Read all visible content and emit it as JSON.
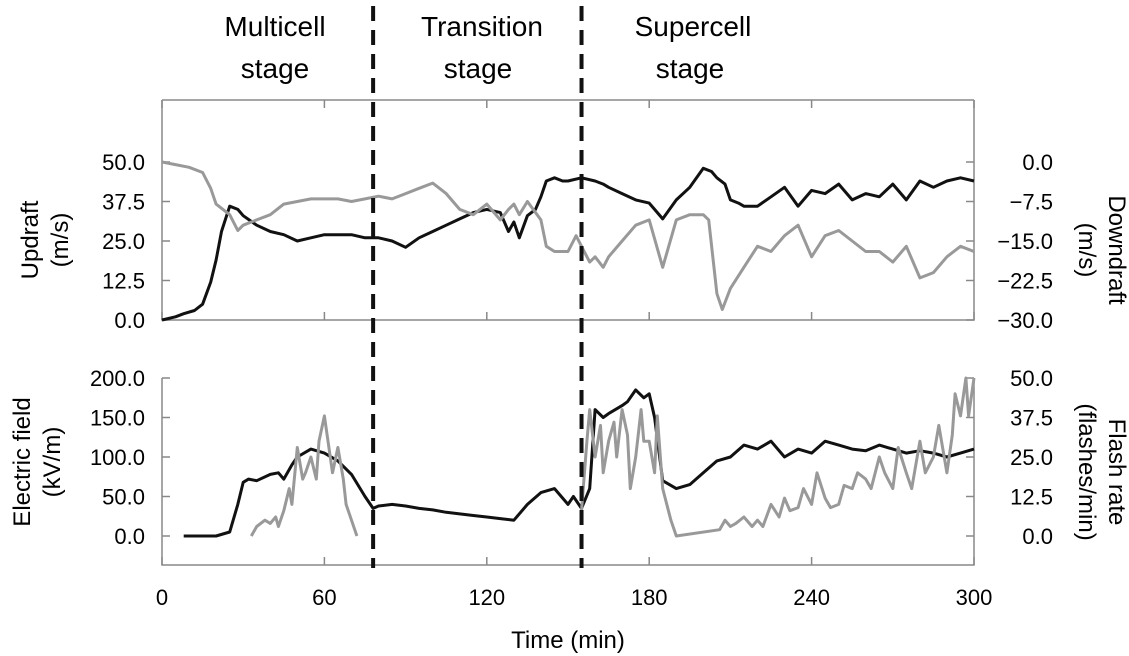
{
  "stages": [
    {
      "line1": "Multicell",
      "line2": "stage"
    },
    {
      "line1": "Transition",
      "line2": "stage"
    },
    {
      "line1": "Supercell",
      "line2": "stage"
    }
  ],
  "stage_boundaries": [
    78,
    155
  ],
  "colors": {
    "black_series": "#111111",
    "gray_series": "#999999",
    "divider": "#111111",
    "axis": "#888888"
  },
  "chart_data": [
    {
      "type": "line",
      "xlabel": "Time (min)",
      "xlim": [
        0,
        300
      ],
      "xticks": [
        "0",
        "60",
        "120",
        "180",
        "240",
        "300"
      ],
      "ylabel_left": [
        "Updraft",
        "(m/s)"
      ],
      "ylim_left": [
        0,
        50
      ],
      "yticks_left": [
        "50.0",
        "37.5",
        "25.0",
        "12.5",
        "0.0"
      ],
      "ylabel_right": [
        "Downdraft",
        "(m/s)"
      ],
      "ylim_right": [
        -30,
        0
      ],
      "yticks_right": [
        "0.0",
        "−7.5",
        "−15.0",
        "−22.5",
        "−30.0"
      ],
      "series": [
        {
          "axis": "left",
          "color": "black",
          "x": [
            0,
            5,
            8,
            12,
            15,
            18,
            20,
            22,
            25,
            28,
            30,
            35,
            40,
            45,
            50,
            55,
            60,
            65,
            70,
            75,
            80,
            85,
            90,
            95,
            100,
            105,
            110,
            115,
            120,
            125,
            128,
            130,
            132,
            135,
            138,
            140,
            142,
            145,
            148,
            150,
            155,
            160,
            163,
            165,
            170,
            175,
            180,
            182,
            185,
            190,
            195,
            200,
            203,
            205,
            208,
            210,
            213,
            215,
            220,
            225,
            230,
            235,
            240,
            245,
            250,
            255,
            260,
            265,
            270,
            275,
            280,
            285,
            290,
            295,
            300
          ],
          "y": [
            0,
            1,
            2,
            3,
            5,
            12,
            19,
            28,
            36,
            35,
            33,
            30,
            28,
            27,
            25,
            26,
            27,
            27,
            27,
            26,
            26,
            25,
            23,
            26,
            28,
            30,
            32,
            34,
            35,
            34,
            28,
            31,
            26,
            33,
            35,
            39,
            44,
            45,
            44,
            44,
            45,
            44,
            43,
            42,
            40,
            38,
            37,
            35,
            32,
            38,
            42,
            48,
            47,
            45,
            43,
            38,
            37,
            36,
            36,
            39,
            42,
            36,
            41,
            40,
            43,
            38,
            40,
            39,
            43,
            38,
            44,
            42,
            44,
            45,
            44
          ]
        },
        {
          "axis": "right",
          "color": "gray",
          "x": [
            0,
            5,
            10,
            15,
            18,
            20,
            25,
            28,
            30,
            35,
            40,
            45,
            50,
            55,
            60,
            65,
            70,
            75,
            80,
            85,
            90,
            95,
            100,
            105,
            110,
            115,
            120,
            125,
            128,
            130,
            132,
            135,
            140,
            142,
            145,
            150,
            153,
            155,
            158,
            160,
            163,
            165,
            170,
            175,
            180,
            185,
            190,
            195,
            200,
            202,
            205,
            207,
            210,
            215,
            220,
            225,
            230,
            235,
            240,
            245,
            250,
            255,
            260,
            265,
            270,
            275,
            280,
            285,
            290,
            295,
            300
          ],
          "y": [
            0,
            -0.5,
            -1,
            -2,
            -5,
            -8,
            -10,
            -13,
            -12,
            -11,
            -10,
            -8,
            -7.5,
            -7,
            -7,
            -7,
            -7.5,
            -7,
            -6.5,
            -7,
            -6,
            -5,
            -4,
            -6,
            -9,
            -10,
            -8,
            -11,
            -9,
            -8,
            -10,
            -7.5,
            -11,
            -16,
            -17,
            -17,
            -14,
            -16,
            -19,
            -18,
            -20,
            -18,
            -15,
            -12,
            -11,
            -20,
            -11,
            -10,
            -10,
            -11,
            -25,
            -28,
            -24,
            -20,
            -16,
            -17,
            -14,
            -12,
            -18,
            -14,
            -13,
            -15,
            -17,
            -17,
            -19,
            -16,
            -22,
            -21,
            -18,
            -16,
            -17
          ]
        }
      ]
    },
    {
      "type": "line",
      "xlabel": "Time (min)",
      "xlim": [
        0,
        300
      ],
      "xticks": [
        "0",
        "60",
        "120",
        "180",
        "240",
        "300"
      ],
      "ylabel_left": [
        "Electric field",
        "(kV/m)"
      ],
      "ylim_left": [
        0,
        200
      ],
      "yticks_left": [
        "200.0",
        "150.0",
        "100.0",
        "50.0",
        "0.0"
      ],
      "ylabel_right": [
        "Flash rate",
        "(flashes/min)"
      ],
      "ylim_right": [
        0,
        50
      ],
      "yticks_right": [
        "50.0",
        "37.5",
        "25.0",
        "12.5",
        "0.0"
      ],
      "series": [
        {
          "axis": "left",
          "color": "black",
          "x": [
            8,
            15,
            20,
            25,
            28,
            30,
            32,
            35,
            40,
            43,
            45,
            48,
            50,
            55,
            60,
            65,
            70,
            75,
            78,
            80,
            85,
            90,
            95,
            100,
            105,
            110,
            115,
            120,
            125,
            130,
            135,
            140,
            145,
            150,
            152,
            155,
            158,
            160,
            163,
            165,
            170,
            172,
            175,
            178,
            180,
            182,
            185,
            190,
            195,
            200,
            205,
            210,
            215,
            220,
            225,
            230,
            235,
            240,
            245,
            250,
            255,
            260,
            265,
            270,
            275,
            280,
            285,
            290,
            295,
            300
          ],
          "y": [
            0,
            0,
            0,
            5,
            40,
            68,
            72,
            70,
            78,
            80,
            72,
            90,
            100,
            110,
            105,
            95,
            78,
            50,
            35,
            38,
            40,
            38,
            35,
            33,
            30,
            28,
            26,
            24,
            22,
            20,
            40,
            55,
            60,
            40,
            50,
            35,
            60,
            160,
            150,
            155,
            165,
            170,
            185,
            175,
            180,
            150,
            70,
            60,
            65,
            80,
            95,
            100,
            115,
            110,
            120,
            100,
            110,
            105,
            120,
            115,
            110,
            108,
            115,
            110,
            105,
            108,
            105,
            100,
            105,
            110
          ]
        },
        {
          "axis": "right",
          "color": "gray",
          "x": [
            33,
            35,
            38,
            40,
            42,
            43,
            45,
            47,
            48,
            50,
            52,
            53,
            55,
            57,
            58,
            60,
            62,
            63,
            65,
            67,
            68,
            70,
            72,
            155,
            157,
            158,
            160,
            162,
            163,
            165,
            167,
            168,
            170,
            172,
            173,
            175,
            177,
            178,
            180,
            182,
            183,
            185,
            188,
            190,
            206,
            208,
            210,
            212,
            215,
            218,
            220,
            222,
            225,
            228,
            230,
            232,
            235,
            237,
            240,
            242,
            245,
            247,
            250,
            252,
            255,
            257,
            260,
            262,
            265,
            267,
            270,
            272,
            275,
            277,
            280,
            282,
            285,
            287,
            290,
            292,
            293,
            295,
            297,
            298,
            300
          ],
          "y": [
            0,
            3,
            5,
            4,
            6,
            3,
            8,
            15,
            10,
            28,
            18,
            20,
            25,
            18,
            30,
            38,
            26,
            20,
            28,
            18,
            10,
            5,
            0,
            8,
            30,
            40,
            25,
            35,
            20,
            30,
            36,
            25,
            40,
            32,
            15,
            25,
            40,
            30,
            30,
            20,
            38,
            15,
            5,
            0,
            2,
            5,
            3,
            4,
            6,
            3,
            5,
            3,
            10,
            6,
            12,
            8,
            9,
            15,
            10,
            20,
            12,
            9,
            10,
            16,
            15,
            20,
            18,
            15,
            25,
            20,
            15,
            28,
            20,
            15,
            30,
            20,
            25,
            35,
            20,
            32,
            45,
            38,
            50,
            38,
            50
          ]
        }
      ]
    }
  ]
}
